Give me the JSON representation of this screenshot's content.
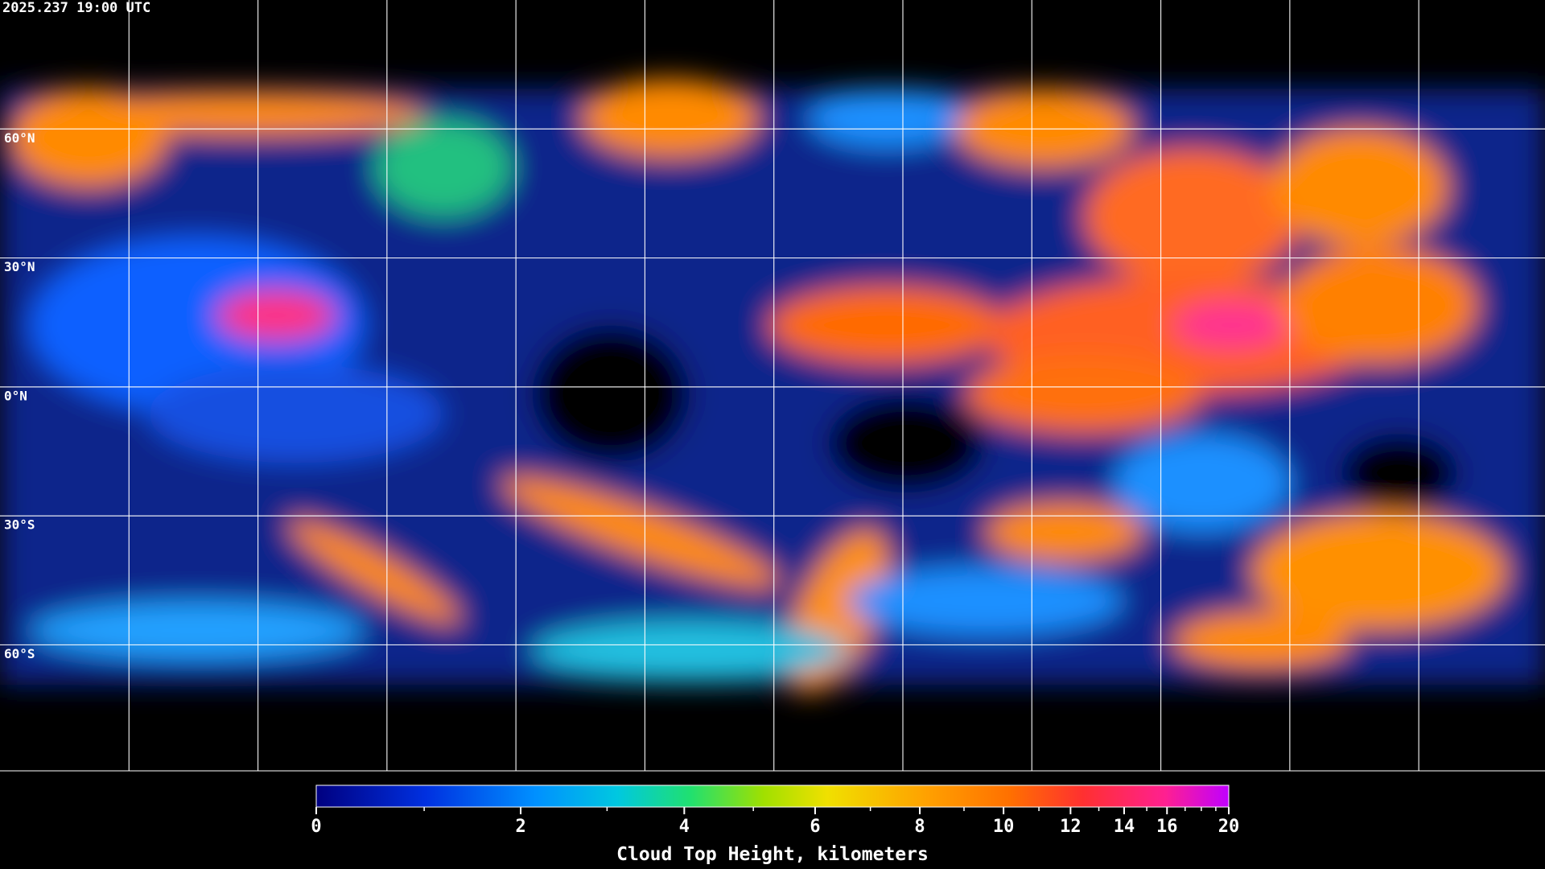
{
  "title": "2025.237 19:00 UTC",
  "lat_labels": [
    "60°N",
    "30°N",
    "0°N",
    "30°S",
    "60°S"
  ],
  "colorbar": {
    "lim": [
      0,
      20
    ],
    "ticks": [
      0,
      2,
      4,
      6,
      8,
      10,
      12,
      14,
      16,
      20
    ],
    "minor_ticks": [
      1,
      3,
      5,
      7,
      9,
      11,
      13,
      15,
      17,
      18,
      19
    ],
    "label": "Cloud Top Height, kilometers"
  }
}
